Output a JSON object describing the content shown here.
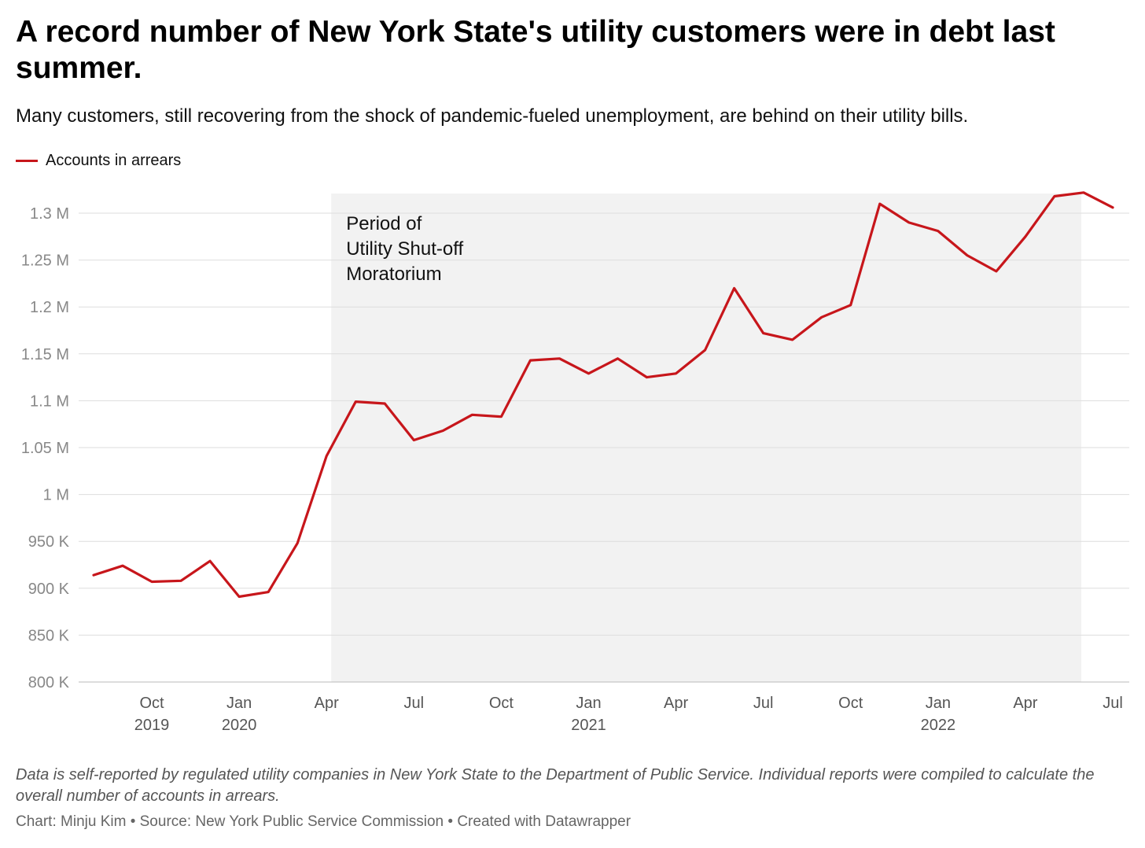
{
  "title": "A record number of New York State's utility customers were in debt last summer.",
  "subtitle": "Many customers, still recovering from the shock of pandemic-fueled unemployment, are behind on their utility bills.",
  "notes": "Data is self-reported by regulated utility companies in New York State to the Department of Public Service. Individual reports were compiled to calculate the overall number of accounts in arrears.",
  "credit": "Chart: Minju Kim • Source: New York Public Service Commission • Created with Datawrapper",
  "colors": {
    "line": "#c7161b",
    "shade": "#f2f2f2",
    "grid": "#dddddd"
  },
  "chart_data": {
    "type": "line",
    "series": [
      {
        "name": "Accounts in arrears",
        "x": [
          "2019-08",
          "2019-09",
          "2019-10",
          "2019-11",
          "2019-12",
          "2020-01",
          "2020-02",
          "2020-03",
          "2020-04",
          "2020-05",
          "2020-06",
          "2020-07",
          "2020-08",
          "2020-09",
          "2020-10",
          "2020-11",
          "2020-12",
          "2021-01",
          "2021-02",
          "2021-03",
          "2021-04",
          "2021-05",
          "2021-06",
          "2021-07",
          "2021-08",
          "2021-09",
          "2021-10",
          "2021-11",
          "2021-12",
          "2022-01",
          "2022-02",
          "2022-03",
          "2022-04",
          "2022-05",
          "2022-06",
          "2022-07"
        ],
        "values": [
          914000,
          924000,
          907000,
          908000,
          929000,
          891000,
          896000,
          948000,
          1041000,
          1099000,
          1097000,
          1058000,
          1068000,
          1085000,
          1083000,
          1143000,
          1145000,
          1129000,
          1145000,
          1125000,
          1129000,
          1154000,
          1220000,
          1172000,
          1165000,
          1189000,
          1202000,
          1310000,
          1290000,
          1281000,
          1255000,
          1238000,
          1275000,
          1318000,
          1322000,
          1306000
        ]
      }
    ],
    "ylim": [
      800000,
      1320000
    ],
    "yticks": [
      {
        "value": 800000,
        "label": "800 K"
      },
      {
        "value": 850000,
        "label": "850 K"
      },
      {
        "value": 900000,
        "label": "900 K"
      },
      {
        "value": 950000,
        "label": "950 K"
      },
      {
        "value": 1000000,
        "label": "1 M"
      },
      {
        "value": 1050000,
        "label": "1.05 M"
      },
      {
        "value": 1100000,
        "label": "1.1 M"
      },
      {
        "value": 1150000,
        "label": "1.15 M"
      },
      {
        "value": 1200000,
        "label": "1.2 M"
      },
      {
        "value": 1250000,
        "label": "1.25 M"
      },
      {
        "value": 1300000,
        "label": "1.3 M"
      }
    ],
    "xticks": [
      {
        "x": "2019-10",
        "label": "Oct",
        "year": "2019"
      },
      {
        "x": "2020-01",
        "label": "Jan",
        "year": "2020"
      },
      {
        "x": "2020-04",
        "label": "Apr",
        "year": ""
      },
      {
        "x": "2020-07",
        "label": "Jul",
        "year": ""
      },
      {
        "x": "2020-10",
        "label": "Oct",
        "year": ""
      },
      {
        "x": "2021-01",
        "label": "Jan",
        "year": "2021"
      },
      {
        "x": "2021-04",
        "label": "Apr",
        "year": ""
      },
      {
        "x": "2021-07",
        "label": "Jul",
        "year": ""
      },
      {
        "x": "2021-10",
        "label": "Oct",
        "year": ""
      },
      {
        "x": "2022-01",
        "label": "Jan",
        "year": "2022"
      },
      {
        "x": "2022-04",
        "label": "Apr",
        "year": ""
      },
      {
        "x": "2022-07",
        "label": "Jul",
        "year": ""
      }
    ],
    "shaded_range": {
      "start": "2020-04",
      "end": "2022-06",
      "label": [
        "Period of",
        "Utility Shut-off",
        "Moratorium"
      ]
    },
    "grid": true,
    "legend_position": "top-left"
  }
}
